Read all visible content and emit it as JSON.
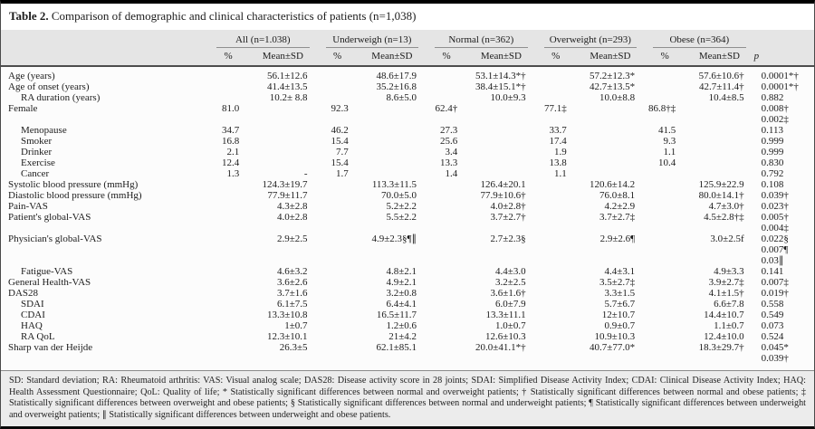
{
  "title": {
    "label": "Table 2.",
    "text": "Comparison of demographic and clinical characteristics of patients (n=1,038)"
  },
  "table": {
    "groups": [
      {
        "label": "All (n=1.038)"
      },
      {
        "label": "Underweigh (n=13)"
      },
      {
        "label": "Normal (n=362)"
      },
      {
        "label": "Overweight (n=293)"
      },
      {
        "label": "Obese (n=364)"
      }
    ],
    "subheaders": {
      "pct": "%",
      "mean": "Mean±SD",
      "p": "p"
    },
    "rows": [
      {
        "label": "Age (years)",
        "indent": false,
        "cells": [
          "",
          "56.1±12.6",
          "",
          "48.6±17.9",
          "",
          "53.1±14.3*†",
          "",
          "57.2±12.3*",
          "",
          "57.6±10.6†"
        ],
        "p": [
          "0.0001*†"
        ]
      },
      {
        "label": "Age of onset (years)",
        "indent": false,
        "cells": [
          "",
          "41.4±13.5",
          "",
          "35.2±16.8",
          "",
          "38.4±15.1*†",
          "",
          "42.7±13.5*",
          "",
          "42.7±11.4†"
        ],
        "p": [
          "0.0001*†"
        ]
      },
      {
        "label": "RA duration (years)",
        "indent": true,
        "cells": [
          "",
          "10.2± 8.8",
          "",
          "8.6±5.0",
          "",
          "10.0±9.3",
          "",
          "10.0±8.8",
          "",
          "10.4±8.5"
        ],
        "p": [
          "0.882"
        ]
      },
      {
        "label": "Female",
        "indent": false,
        "cells": [
          "81.0",
          "",
          "92.3",
          "",
          "62.4†",
          "",
          "77.1‡",
          "",
          "86.8†‡",
          ""
        ],
        "p": [
          "0.008†",
          "0.002‡"
        ]
      },
      {
        "label": "Menopause",
        "indent": true,
        "cells": [
          "34.7",
          "",
          "46.2",
          "",
          "27.3",
          "",
          "33.7",
          "",
          "41.5",
          ""
        ],
        "p": [
          "0.113"
        ]
      },
      {
        "label": "Smoker",
        "indent": true,
        "cells": [
          "16.8",
          "",
          "15.4",
          "",
          "25.6",
          "",
          "17.4",
          "",
          "9.3",
          ""
        ],
        "p": [
          "0.999"
        ]
      },
      {
        "label": "Drinker",
        "indent": true,
        "cells": [
          "2.1",
          "",
          "7.7",
          "",
          "3.4",
          "",
          "1.9",
          "",
          "1.1",
          ""
        ],
        "p": [
          "0.999"
        ]
      },
      {
        "label": "Exercise",
        "indent": true,
        "cells": [
          "12.4",
          "",
          "15.4",
          "",
          "13.3",
          "",
          "13.8",
          "",
          "10.4",
          ""
        ],
        "p": [
          "0.830"
        ]
      },
      {
        "label": "Cancer",
        "indent": true,
        "cells": [
          "1.3",
          "-",
          "1.7",
          "",
          "1.4",
          "",
          "1.1",
          "",
          "",
          ""
        ],
        "p": [
          "0.792"
        ]
      },
      {
        "label": "Systolic blood pressure (mmHg)",
        "indent": false,
        "cells": [
          "",
          "124.3±19.7",
          "",
          "113.3±11.5",
          "",
          "126.4±20.1",
          "",
          "120.6±14.2",
          "",
          "125.9±22.9"
        ],
        "p": [
          "0.108"
        ]
      },
      {
        "label": "Diastolic blood pressure (mmHg)",
        "indent": false,
        "cells": [
          "",
          "77.9±11.7",
          "",
          "70.0±5.0",
          "",
          "77.9±10.6†",
          "",
          "76.0±8.1",
          "",
          "80.0±14.1†"
        ],
        "p": [
          "0.039†"
        ]
      },
      {
        "label": "Pain-VAS",
        "indent": false,
        "cells": [
          "",
          "4.3±2.8",
          "",
          "5.2±2.2",
          "",
          "4.0±2.8†",
          "",
          "4.2±2.9",
          "",
          "4.7±3.0†"
        ],
        "p": [
          "0.023†"
        ]
      },
      {
        "label": "Patient's global-VAS",
        "indent": false,
        "cells": [
          "",
          "4.0±2.8",
          "",
          "5.5±2.2",
          "",
          "3.7±2.7†",
          "",
          "3.7±2.7‡",
          "",
          "4.5±2.8†‡"
        ],
        "p": [
          "0.005†",
          "0.004‡"
        ]
      },
      {
        "label": "Physician's global-VAS",
        "indent": false,
        "cells": [
          "",
          "2.9±2.5",
          "",
          "4.9±2.3§¶∥",
          "",
          "2.7±2.3§",
          "",
          "2.9±2.6¶",
          "",
          "3.0±2.5f"
        ],
        "p": [
          "0.022§",
          "0.007¶",
          "0.03∥"
        ]
      },
      {
        "label": "Fatigue-VAS",
        "indent": true,
        "cells": [
          "",
          "4.6±3.2",
          "",
          "4.8±2.1",
          "",
          "4.4±3.0",
          "",
          "4.4±3.1",
          "",
          "4.9±3.3"
        ],
        "p": [
          "0.141"
        ]
      },
      {
        "label": "General Health-VAS",
        "indent": false,
        "cells": [
          "",
          "3.6±2.6",
          "",
          "4.9±2.1",
          "",
          "3.2±2.5",
          "",
          "3.5±2.7‡",
          "",
          "3.9±2.7‡"
        ],
        "p": [
          "0.007‡"
        ]
      },
      {
        "label": "DAS28",
        "indent": false,
        "cells": [
          "",
          "3.7±1.6",
          "",
          "3.2±0.8",
          "",
          "3.6±1.6†",
          "",
          "3.3±1.5",
          "",
          "4.1±1.5†"
        ],
        "p": [
          "0.019†"
        ]
      },
      {
        "label": "SDAI",
        "indent": true,
        "cells": [
          "",
          "6.1±7.5",
          "",
          "6.4±4.1",
          "",
          "6.0±7.9",
          "",
          "5.7±6.7",
          "",
          "6.6±7.8"
        ],
        "p": [
          "0.558"
        ]
      },
      {
        "label": "CDAI",
        "indent": true,
        "cells": [
          "",
          "13.3±10.8",
          "",
          "16.5±11.7",
          "",
          "13.3±11.1",
          "",
          "12±10.7",
          "",
          "14.4±10.7"
        ],
        "p": [
          "0.549"
        ]
      },
      {
        "label": "HAQ",
        "indent": true,
        "cells": [
          "",
          "1±0.7",
          "",
          "1.2±0.6",
          "",
          "1.0±0.7",
          "",
          "0.9±0.7",
          "",
          "1.1±0.7"
        ],
        "p": [
          "0.073"
        ]
      },
      {
        "label": "RA QoL",
        "indent": true,
        "cells": [
          "",
          "12.3±10.1",
          "",
          "21±4.2",
          "",
          "12.6±10.3",
          "",
          "10.9±10.3",
          "",
          "12.4±10.0"
        ],
        "p": [
          "0.524"
        ]
      },
      {
        "label": "Sharp van der Heijde",
        "indent": false,
        "cells": [
          "",
          "26.3±5",
          "",
          "62.1±85.1",
          "",
          "20.0±41.1*†",
          "",
          "40.7±77.0*",
          "",
          "18.3±29.7†"
        ],
        "p": [
          "0.045*",
          "0.039†"
        ]
      }
    ]
  },
  "footnote": "SD: Standard deviation; RA: Rheumatoid arthritis: VAS: Visual analog scale; DAS28: Disease activity score in 28 joints; SDAI: Simplified Disease Activity Index; CDAI: Clinical Disease Activity Index; HAQ: Health Assessment Questionnaire; QoL: Quality of life; * Statistically significant differences between normal and overweight patients; † Statistically significant differences between normal and obese patients; ‡ Statistically significant differences between overweight and obese patients; § Statistically significant differences between normal and underweight patients; ¶ Statistically significant differences between underweight and overweight patients; ∥ Statistically significant differences between underweight and obese patients."
}
